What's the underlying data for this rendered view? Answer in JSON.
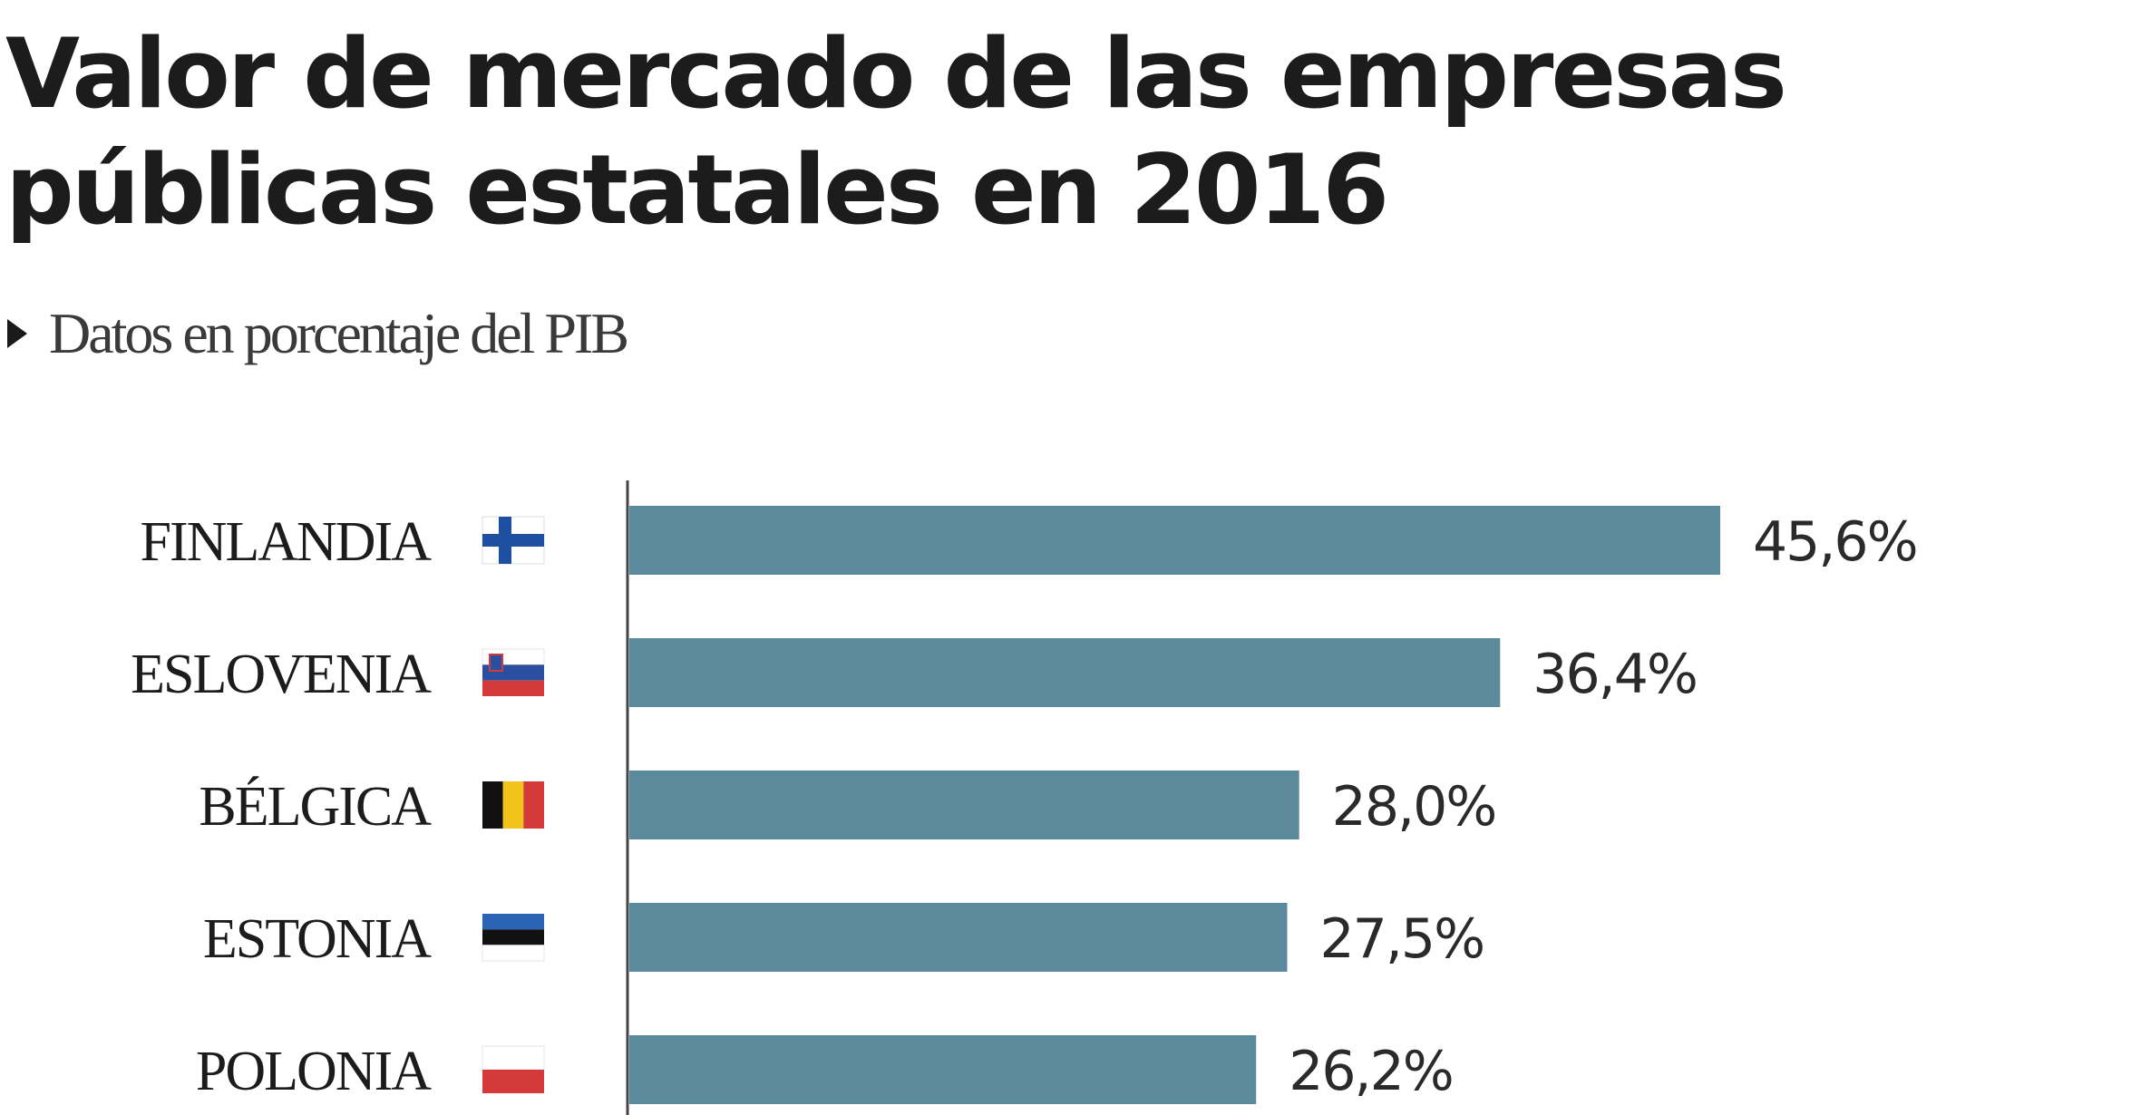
{
  "chart_data": {
    "type": "bar",
    "orientation": "horizontal",
    "title": "Valor de mercado de las empresas públicas estatales en 2016",
    "subtitle": "Datos en porcentaje del PIB",
    "categories": [
      "FINLANDIA",
      "ESLOVENIA",
      "BÉLGICA",
      "ESTONIA",
      "POLONIA"
    ],
    "values": [
      45.6,
      36.4,
      28.0,
      27.5,
      26.2
    ],
    "value_labels": [
      "45,6%",
      "36,4%",
      "28,0%",
      "27,5%",
      "26,2%"
    ],
    "flags": [
      "finland-flag-icon",
      "slovenia-flag-icon",
      "belgium-flag-icon",
      "estonia-flag-icon",
      "poland-flag-icon"
    ],
    "xlim": [
      0,
      45.6
    ],
    "grid": false,
    "bar_color": "#5b8a9c"
  }
}
